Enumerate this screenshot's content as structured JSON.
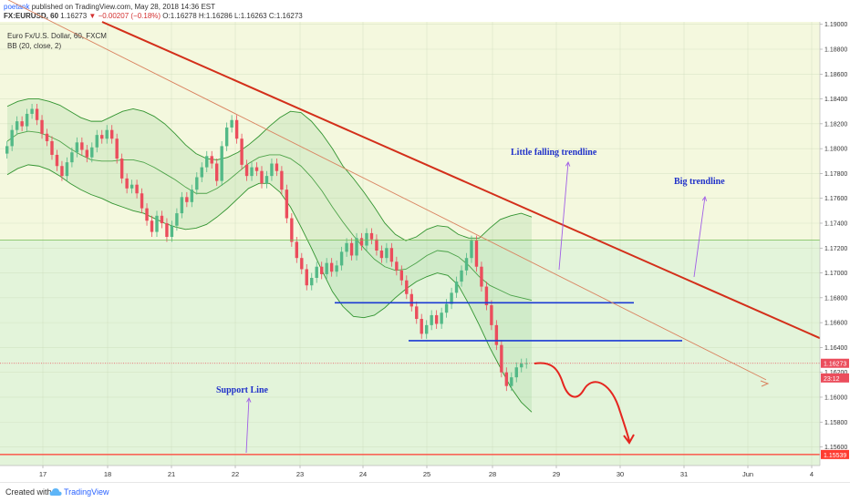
{
  "header": {
    "user": "poetank",
    "published": "published on TradingView.com, May 28, 2018 14:36 EST",
    "symbol": "FX:EURUSD, 60",
    "last": "1.16273",
    "change": "−0.00207 (−0.18%)",
    "ohlc": "O:1.16278 H:1.16286 L:1.16263 C:1.16273"
  },
  "legend": {
    "title": "Euro Fx/U.S. Dollar, 60, FXCM",
    "indicator": "BB (20, close, 2)"
  },
  "footer": {
    "created": "Created with",
    "brand": "TradingView"
  },
  "colors": {
    "bg_upper": "#f4f8de",
    "bg_lower": "#e3f4da",
    "candle_up": "#53b987",
    "candle_down": "#eb4d5c",
    "bb_line": "#1e8a1e",
    "trend_big": "#d32f1a",
    "trend_little": "#d9825f",
    "support": "#ff3b30",
    "hlines": "#1b3ad4",
    "annotation_text": "#2031c9",
    "arrow": "#a05ee6",
    "forecast": "#e5251f"
  },
  "chart_data": {
    "type": "candlestick",
    "y_axis": {
      "min": 1.1545,
      "max": 1.1902,
      "ticks": [
        "1.19000",
        "1.18800",
        "1.18600",
        "1.18400",
        "1.18200",
        "1.18000",
        "1.17800",
        "1.17600",
        "1.17400",
        "1.17200",
        "1.17000",
        "1.16800",
        "1.16600",
        "1.16400",
        "1.16200",
        "1.16000",
        "1.15800",
        "1.15600"
      ]
    },
    "x_axis": {
      "labels": [
        "17",
        "18",
        "21",
        "22",
        "23",
        "24",
        "25",
        "28",
        "29",
        "30",
        "31",
        "Jun",
        "4"
      ]
    },
    "price_badges": [
      {
        "label": "1.16273",
        "value": 1.16273
      },
      {
        "label": "23:12",
        "value": 1.16155
      },
      {
        "label": "1.15539",
        "value": 1.15539
      }
    ],
    "candles_close": [
      1.1802,
      1.1815,
      1.1822,
      1.1818,
      1.1828,
      1.1832,
      1.1823,
      1.1812,
      1.1806,
      1.1795,
      1.1786,
      1.1778,
      1.1789,
      1.1797,
      1.1805,
      1.1799,
      1.1793,
      1.1801,
      1.1811,
      1.1808,
      1.1815,
      1.1808,
      1.1792,
      1.1776,
      1.1768,
      1.1771,
      1.1764,
      1.1752,
      1.1742,
      1.1733,
      1.1746,
      1.174,
      1.1729,
      1.1738,
      1.1748,
      1.1761,
      1.1757,
      1.1767,
      1.1777,
      1.1785,
      1.1794,
      1.1788,
      1.1774,
      1.1802,
      1.1817,
      1.1823,
      1.1808,
      1.1787,
      1.1778,
      1.1785,
      1.1782,
      1.1772,
      1.1778,
      1.1788,
      1.1782,
      1.1767,
      1.1744,
      1.1725,
      1.1712,
      1.1703,
      1.169,
      1.1696,
      1.1705,
      1.1699,
      1.1708,
      1.1701,
      1.1706,
      1.1717,
      1.1724,
      1.1714,
      1.1728,
      1.1722,
      1.1732,
      1.1727,
      1.1718,
      1.1712,
      1.172,
      1.1709,
      1.1702,
      1.1694,
      1.1683,
      1.1673,
      1.1663,
      1.1651,
      1.1658,
      1.1666,
      1.1659,
      1.1668,
      1.1675,
      1.1684,
      1.1693,
      1.1702,
      1.1712,
      1.1726,
      1.1705,
      1.1689,
      1.1674,
      1.1658,
      1.1642,
      1.162,
      1.1609,
      1.1616,
      1.1624,
      1.1627,
      1.16273
    ],
    "bb_upper": [
      1.1834,
      1.1838,
      1.184,
      1.184,
      1.1838,
      1.1835,
      1.183,
      1.1825,
      1.1822,
      1.1822,
      1.1826,
      1.183,
      1.1832,
      1.183,
      1.1826,
      1.182,
      1.1812,
      1.1803,
      1.1796,
      1.1792,
      1.1791,
      1.1793,
      1.1797,
      1.1803,
      1.181,
      1.1818,
      1.1825,
      1.183,
      1.1829,
      1.1822,
      1.1812,
      1.18,
      1.1786,
      1.1776,
      1.1765,
      1.1753,
      1.174,
      1.1731,
      1.1726,
      1.1729,
      1.1735,
      1.1738,
      1.1737,
      1.1731,
      1.1728,
      1.1728,
      1.1736,
      1.1743,
      1.1746,
      1.1748,
      1.1745
    ],
    "bb_middle": [
      1.1806,
      1.1812,
      1.1814,
      1.1813,
      1.181,
      1.1806,
      1.18,
      1.1795,
      1.1791,
      1.179,
      1.179,
      1.1791,
      1.1791,
      1.1789,
      1.1785,
      1.178,
      1.1775,
      1.1769,
      1.1764,
      1.1764,
      1.1768,
      1.1774,
      1.1781,
      1.1788,
      1.1793,
      1.1795,
      1.1795,
      1.1792,
      1.1786,
      1.1777,
      1.1766,
      1.1753,
      1.1741,
      1.173,
      1.172,
      1.1711,
      1.1705,
      1.1702,
      1.1703,
      1.1708,
      1.1714,
      1.1718,
      1.1717,
      1.1713,
      1.1706,
      1.1697,
      1.169,
      1.1686,
      1.1682,
      1.168,
      1.1678
    ],
    "bb_lower": [
      1.1779,
      1.1784,
      1.1787,
      1.1786,
      1.1783,
      1.1778,
      1.1772,
      1.1767,
      1.1763,
      1.176,
      1.1756,
      1.1753,
      1.175,
      1.1748,
      1.1744,
      1.174,
      1.1737,
      1.1735,
      1.1736,
      1.1739,
      1.1745,
      1.1752,
      1.176,
      1.1768,
      1.1772,
      1.1772,
      1.1765,
      1.1753,
      1.1737,
      1.172,
      1.1702,
      1.1685,
      1.1673,
      1.1665,
      1.1664,
      1.1666,
      1.1672,
      1.168,
      1.1687,
      1.1693,
      1.1697,
      1.17,
      1.1698,
      1.169,
      1.1675,
      1.1658,
      1.164,
      1.1624,
      1.1608,
      1.1596,
      1.1588
    ],
    "horizontal_lines": [
      {
        "name": "support",
        "value": 1.15539
      },
      {
        "name": "green-level",
        "value": 1.17265
      },
      {
        "name": "last-price",
        "value": 1.16273
      },
      {
        "name": "level-1",
        "value": 1.1676
      },
      {
        "name": "level-2",
        "value": 1.16455
      }
    ],
    "trendlines": [
      {
        "name": "big-trendline",
        "from": {
          "bar": 10,
          "price": 1.1902
        },
        "to": {
          "bar": 132,
          "price": 1.16475
        }
      },
      {
        "name": "little-trendline",
        "from": {
          "bar": 0,
          "price": 1.1923
        },
        "to": {
          "bar": 118,
          "price": 1.1614
        }
      }
    ],
    "annotations": [
      {
        "name": "little-trendline-label",
        "text": "Little falling trendline"
      },
      {
        "name": "big-trendline-label",
        "text": "Big trendline"
      },
      {
        "name": "support-line-label",
        "text": "Support Line"
      }
    ]
  }
}
